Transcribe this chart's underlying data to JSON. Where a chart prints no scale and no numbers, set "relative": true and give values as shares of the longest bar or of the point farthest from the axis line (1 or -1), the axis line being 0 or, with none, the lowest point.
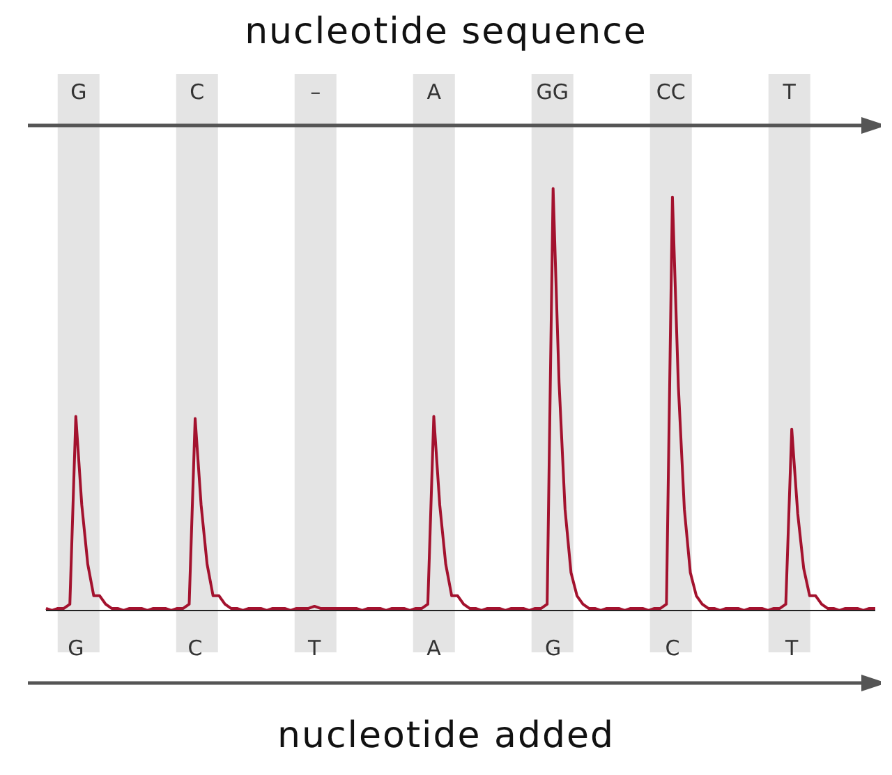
{
  "chart_data": {
    "type": "line",
    "title": "nucleotide sequence",
    "xlabel": "nucleotide added",
    "relative": true,
    "tick_labels": "x",
    "annotations": [
      "G",
      "C",
      "–",
      "A",
      "GG",
      "CC",
      "T"
    ],
    "categories": [
      null,
      null,
      null,
      null,
      null,
      "G",
      null,
      null,
      null,
      null,
      null,
      null,
      null,
      null,
      null,
      null,
      null,
      null,
      null,
      null,
      null,
      null,
      null,
      null,
      null,
      "C",
      null,
      null,
      null,
      null,
      null,
      null,
      null,
      null,
      null,
      null,
      null,
      null,
      null,
      null,
      null,
      null,
      null,
      null,
      null,
      "T",
      null,
      null,
      null,
      null,
      null,
      null,
      null,
      null,
      null,
      null,
      null,
      null,
      null,
      null,
      null,
      null,
      null,
      null,
      null,
      "A",
      null,
      null,
      null,
      null,
      null,
      null,
      null,
      null,
      null,
      null,
      null,
      null,
      null,
      null,
      null,
      null,
      null,
      null,
      null,
      "G",
      null,
      null,
      null,
      null,
      null,
      null,
      null,
      null,
      null,
      null,
      null,
      null,
      null,
      null,
      null,
      null,
      null,
      null,
      null,
      "C",
      null,
      null,
      null,
      null,
      null,
      null,
      null,
      null,
      null,
      null,
      null,
      null,
      null,
      null,
      null,
      null,
      null,
      null,
      null,
      "T",
      null,
      null,
      null,
      null,
      null,
      null,
      null,
      null,
      null,
      null,
      null,
      null,
      null,
      null
    ],
    "series": [
      {
        "color": "#a3122e",
        "values": [
          0.005,
          0,
          0.005,
          0.005,
          0.015,
          0.46,
          0.25,
          0.11,
          0.035,
          0.035,
          0.015,
          0.005,
          0.005,
          0,
          0.005,
          0.005,
          0.005,
          0,
          0.005,
          0.005,
          0.005,
          0,
          0.005,
          0.005,
          0.015,
          0.455,
          0.25,
          0.11,
          0.035,
          0.035,
          0.015,
          0.005,
          0.005,
          0,
          0.005,
          0.005,
          0.005,
          0,
          0.005,
          0.005,
          0.005,
          0,
          0.005,
          0.005,
          0.005,
          0.01,
          0.005,
          0.005,
          0.005,
          0.005,
          0.005,
          0.005,
          0.005,
          0,
          0.005,
          0.005,
          0.005,
          0,
          0.005,
          0.005,
          0.005,
          0,
          0.005,
          0.005,
          0.015,
          0.46,
          0.25,
          0.11,
          0.035,
          0.035,
          0.015,
          0.005,
          0.005,
          0,
          0.005,
          0.005,
          0.005,
          0,
          0.005,
          0.005,
          0.005,
          0,
          0.005,
          0.005,
          0.015,
          1.0,
          0.54,
          0.24,
          0.09,
          0.035,
          0.015,
          0.005,
          0.005,
          0,
          0.005,
          0.005,
          0.005,
          0,
          0.005,
          0.005,
          0.005,
          0,
          0.005,
          0.005,
          0.015,
          0.98,
          0.53,
          0.24,
          0.09,
          0.035,
          0.015,
          0.005,
          0.005,
          0,
          0.005,
          0.005,
          0.005,
          0,
          0.005,
          0.005,
          0.005,
          0,
          0.005,
          0.005,
          0.015,
          0.43,
          0.23,
          0.1,
          0.035,
          0.035,
          0.015,
          0.005,
          0.005,
          0,
          0.005,
          0.005,
          0.005,
          0,
          0.005,
          0.005
        ]
      }
    ]
  }
}
